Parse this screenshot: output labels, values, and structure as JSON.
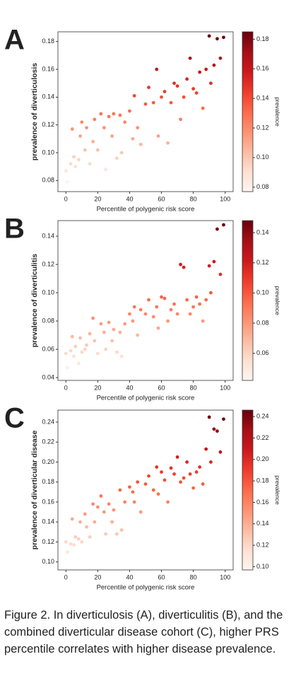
{
  "chart_data": [
    {
      "type": "scatter",
      "label": "A",
      "ylabel": "prevalence of diverticulosis",
      "xlabel": "Percentile of polygenic risk score",
      "colormap": "Reds",
      "colorbar_label": "prevalence",
      "xlim": [
        -5,
        105
      ],
      "xticks": [
        0,
        20,
        40,
        60,
        80,
        100
      ],
      "ylim": [
        0.072,
        0.187
      ],
      "yticks": [
        0.08,
        {
          "value": 0.1,
          "label": "0.10"
        },
        0.12,
        0.14,
        0.16,
        0.18
      ],
      "clim": [
        0.077,
        0.185
      ],
      "cticks": [
        0.08,
        {
          "value": 0.1,
          "label": "0.10"
        },
        0.12,
        0.14,
        0.16,
        0.18
      ],
      "x": [
        0,
        1,
        3,
        4,
        5,
        6,
        8,
        9,
        10,
        12,
        13,
        15,
        17,
        18,
        20,
        22,
        24,
        25,
        27,
        29,
        30,
        32,
        34,
        35,
        37,
        40,
        42,
        43,
        45,
        47,
        50,
        52,
        55,
        57,
        58,
        60,
        62,
        64,
        66,
        68,
        70,
        72,
        74,
        76,
        78,
        80,
        82,
        84,
        86,
        88,
        90,
        91,
        93,
        95,
        97,
        99
      ],
      "values": [
        0.087,
        0.079,
        0.092,
        0.117,
        0.097,
        0.09,
        0.095,
        0.112,
        0.122,
        0.102,
        0.118,
        0.092,
        0.108,
        0.124,
        0.102,
        0.128,
        0.118,
        0.088,
        0.126,
        0.112,
        0.128,
        0.096,
        0.127,
        0.1,
        0.122,
        0.13,
        0.11,
        0.141,
        0.118,
        0.106,
        0.135,
        0.147,
        0.136,
        0.16,
        0.112,
        0.14,
        0.144,
        0.107,
        0.136,
        0.15,
        0.148,
        0.124,
        0.14,
        0.153,
        0.168,
        0.146,
        0.143,
        0.158,
        0.132,
        0.16,
        0.184,
        0.15,
        0.163,
        0.182,
        0.168,
        0.183
      ]
    },
    {
      "type": "scatter",
      "label": "B",
      "ylabel": "prevalence of diverticulitis",
      "xlabel": "Percentile of polygenic risk score",
      "colormap": "Reds",
      "colorbar_label": "prevalence",
      "xlim": [
        -5,
        105
      ],
      "xticks": [
        0,
        20,
        40,
        60,
        80,
        100
      ],
      "ylim": [
        0.038,
        0.151
      ],
      "yticks": [
        0.04,
        0.06,
        0.08,
        {
          "value": 0.1,
          "label": "0.10"
        },
        0.12,
        0.14
      ],
      "clim": [
        0.042,
        0.148
      ],
      "cticks": [
        0.06,
        0.08,
        {
          "value": 0.1,
          "label": "0.10"
        },
        0.12,
        0.14
      ],
      "x": [
        0,
        1,
        3,
        4,
        5,
        6,
        8,
        9,
        10,
        12,
        13,
        15,
        17,
        18,
        20,
        22,
        24,
        25,
        27,
        29,
        30,
        32,
        34,
        35,
        37,
        40,
        42,
        43,
        45,
        47,
        50,
        52,
        55,
        57,
        58,
        60,
        62,
        64,
        66,
        68,
        70,
        72,
        74,
        76,
        78,
        80,
        82,
        84,
        86,
        88,
        90,
        91,
        93,
        95,
        97,
        99
      ],
      "values": [
        0.057,
        0.047,
        0.059,
        0.069,
        0.055,
        0.062,
        0.05,
        0.068,
        0.058,
        0.06,
        0.063,
        0.071,
        0.082,
        0.066,
        0.057,
        0.078,
        0.072,
        0.06,
        0.079,
        0.066,
        0.074,
        0.058,
        0.072,
        0.055,
        0.078,
        0.085,
        0.08,
        0.09,
        0.07,
        0.088,
        0.085,
        0.095,
        0.083,
        0.09,
        0.075,
        0.097,
        0.096,
        0.08,
        0.088,
        0.092,
        0.085,
        0.12,
        0.118,
        0.095,
        0.085,
        0.09,
        0.097,
        0.092,
        0.08,
        0.095,
        0.119,
        0.1,
        0.122,
        0.145,
        0.113,
        0.148
      ]
    },
    {
      "type": "scatter",
      "label": "C",
      "ylabel": "prevalence of diverticular disease",
      "xlabel": "Percentile of polygenic risk score",
      "colormap": "Reds",
      "colorbar_label": "prevalence",
      "xlim": [
        -5,
        105
      ],
      "xticks": [
        0,
        20,
        40,
        60,
        80,
        100
      ],
      "ylim": [
        0.092,
        0.252
      ],
      "yticks": [
        {
          "value": 0.1,
          "label": "0.10"
        },
        0.12,
        0.14,
        0.16,
        0.18,
        {
          "value": 0.2,
          "label": "0.20"
        },
        0.22,
        0.24
      ],
      "clim": [
        0.097,
        0.246
      ],
      "cticks": [
        {
          "value": 0.1,
          "label": "0.10"
        },
        0.12,
        0.14,
        0.16,
        0.18,
        {
          "value": 0.2,
          "label": "0.20"
        },
        0.22,
        0.24
      ],
      "x": [
        0,
        1,
        3,
        4,
        5,
        6,
        8,
        9,
        10,
        12,
        13,
        15,
        17,
        18,
        20,
        22,
        24,
        25,
        27,
        29,
        30,
        32,
        34,
        35,
        37,
        40,
        42,
        43,
        45,
        47,
        50,
        52,
        55,
        57,
        58,
        60,
        62,
        64,
        66,
        68,
        70,
        72,
        74,
        76,
        78,
        80,
        82,
        84,
        86,
        88,
        90,
        91,
        93,
        95,
        97,
        99
      ],
      "values": [
        0.12,
        0.11,
        0.118,
        0.143,
        0.117,
        0.125,
        0.123,
        0.14,
        0.12,
        0.148,
        0.135,
        0.125,
        0.158,
        0.14,
        0.155,
        0.166,
        0.15,
        0.128,
        0.158,
        0.14,
        0.152,
        0.128,
        0.172,
        0.132,
        0.16,
        0.175,
        0.17,
        0.16,
        0.18,
        0.15,
        0.178,
        0.186,
        0.172,
        0.195,
        0.168,
        0.19,
        0.182,
        0.16,
        0.194,
        0.188,
        0.205,
        0.18,
        0.184,
        0.2,
        0.188,
        0.174,
        0.19,
        0.195,
        0.178,
        0.213,
        0.245,
        0.2,
        0.233,
        0.231,
        0.21,
        0.243
      ]
    }
  ],
  "caption": "Figure 2. In diverticulosis (A), diverticulitis (B), and the combined diverticular disease cohort (C), higher PRS percentile correlates with higher disease prevalence."
}
